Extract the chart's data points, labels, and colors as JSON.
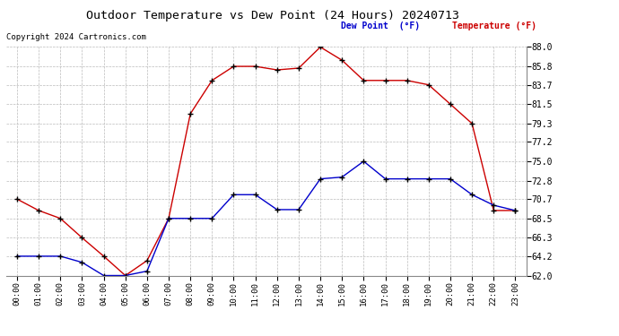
{
  "title": "Outdoor Temperature vs Dew Point (24 Hours) 20240713",
  "copyright": "Copyright 2024 Cartronics.com",
  "legend_dew": "Dew Point  (°F)",
  "legend_temp": "Temperature (°F)",
  "hours": [
    "00:00",
    "01:00",
    "02:00",
    "03:00",
    "04:00",
    "05:00",
    "06:00",
    "07:00",
    "08:00",
    "09:00",
    "10:00",
    "11:00",
    "12:00",
    "13:00",
    "14:00",
    "15:00",
    "16:00",
    "17:00",
    "18:00",
    "19:00",
    "20:00",
    "21:00",
    "22:00",
    "23:00"
  ],
  "temperature": [
    70.7,
    69.4,
    68.5,
    66.3,
    64.2,
    62.0,
    63.7,
    68.5,
    80.4,
    84.2,
    85.8,
    85.8,
    85.4,
    85.6,
    88.0,
    86.5,
    84.2,
    84.2,
    84.2,
    83.7,
    81.5,
    79.3,
    69.4,
    69.4
  ],
  "dew_point": [
    64.2,
    64.2,
    64.2,
    63.5,
    62.0,
    62.0,
    62.5,
    68.5,
    68.5,
    68.5,
    71.2,
    71.2,
    69.5,
    69.5,
    73.0,
    73.2,
    75.0,
    73.0,
    73.0,
    73.0,
    73.0,
    71.2,
    70.0,
    69.4
  ],
  "temp_color": "#cc0000",
  "dew_color": "#0000cc",
  "ylim_min": 62.0,
  "ylim_max": 88.0,
  "ytick_labels": [
    "88.0",
    "85.8",
    "83.7",
    "81.5",
    "79.3",
    "77.2",
    "75.0",
    "72.8",
    "70.7",
    "68.5",
    "66.3",
    "64.2",
    "62.0"
  ],
  "ytick_values": [
    88.0,
    85.8,
    83.7,
    81.5,
    79.3,
    77.2,
    75.0,
    72.8,
    70.7,
    68.5,
    66.3,
    64.2,
    62.0
  ],
  "background_color": "#ffffff",
  "grid_color": "#bbbbbb"
}
